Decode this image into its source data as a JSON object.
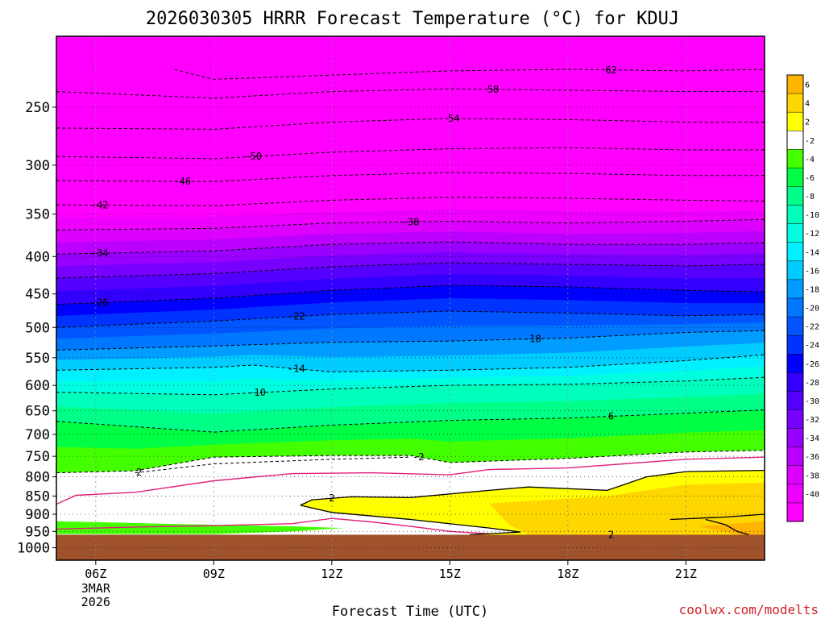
{
  "chart_data": {
    "type": "heatmap",
    "title": "2026030305 HRRR Forecast Temperature (°C) for KDUJ",
    "xlabel": "Forecast Time (UTC)",
    "ylabel": "",
    "credit": "coolwx.com/modelts",
    "y_scale": "log-pressure",
    "y_range": [
      1040,
      200
    ],
    "x_range": [
      5,
      23
    ],
    "y_ticks": [
      250,
      300,
      350,
      400,
      450,
      500,
      550,
      600,
      650,
      700,
      750,
      800,
      850,
      900,
      950,
      1000
    ],
    "x_ticks": [
      {
        "x": 6,
        "label": "06Z",
        "sub": [
          "3MAR",
          "2026"
        ]
      },
      {
        "x": 9,
        "label": "09Z"
      },
      {
        "x": 12,
        "label": "12Z"
      },
      {
        "x": 15,
        "label": "15Z"
      },
      {
        "x": 18,
        "label": "18Z"
      },
      {
        "x": 21,
        "label": "21Z"
      }
    ],
    "surface_pressure_hpa": 960,
    "ground_color": "#a0522d",
    "colorbar": {
      "levels": [
        6,
        4,
        2,
        -2,
        -4,
        -6,
        -8,
        -10,
        -12,
        -14,
        -16,
        -18,
        -20,
        -22,
        -24,
        -26,
        -28,
        -30,
        -32,
        -34,
        -36,
        -38,
        -40
      ],
      "bands": [
        {
          "min": 6,
          "max": 8,
          "color": "#ffb400"
        },
        {
          "min": 4,
          "max": 6,
          "color": "#ffd700"
        },
        {
          "min": 2,
          "max": 4,
          "color": "#ffff00"
        },
        {
          "min": -2,
          "max": 2,
          "color": "#ffffff"
        },
        {
          "min": -4,
          "max": -2,
          "color": "#44ff00"
        },
        {
          "min": -6,
          "max": -4,
          "color": "#00ff44"
        },
        {
          "min": -8,
          "max": -6,
          "color": "#00ff88"
        },
        {
          "min": -10,
          "max": -8,
          "color": "#00ffbb"
        },
        {
          "min": -12,
          "max": -10,
          "color": "#00ffe0"
        },
        {
          "min": -14,
          "max": -12,
          "color": "#00f0ff"
        },
        {
          "min": -16,
          "max": -14,
          "color": "#00ccff"
        },
        {
          "min": -18,
          "max": -16,
          "color": "#009cff"
        },
        {
          "min": -20,
          "max": -18,
          "color": "#0077ff"
        },
        {
          "min": -22,
          "max": -20,
          "color": "#0055ff"
        },
        {
          "min": -24,
          "max": -22,
          "color": "#0033ff"
        },
        {
          "min": -26,
          "max": -24,
          "color": "#0000ff"
        },
        {
          "min": -28,
          "max": -26,
          "color": "#3300ff"
        },
        {
          "min": -30,
          "max": -28,
          "color": "#5500ff"
        },
        {
          "min": -32,
          "max": -30,
          "color": "#7700ff"
        },
        {
          "min": -34,
          "max": -32,
          "color": "#9900ff"
        },
        {
          "min": -36,
          "max": -34,
          "color": "#bb00ff"
        },
        {
          "min": -38,
          "max": -36,
          "color": "#dd00ff"
        },
        {
          "min": -40,
          "max": -38,
          "color": "#ee00ff"
        },
        {
          "min": -70,
          "max": -40,
          "color": "#ff00ff"
        }
      ]
    },
    "isotherms": [
      {
        "level": -62,
        "label": "62",
        "label_x": 19.1,
        "points": [
          [
            8,
            222
          ],
          [
            9,
            229
          ],
          [
            12,
            226
          ],
          [
            15,
            223
          ],
          [
            18,
            222
          ],
          [
            21,
            223
          ],
          [
            23,
            222
          ]
        ]
      },
      {
        "level": -58,
        "label": "58",
        "label_x": 16.1,
        "points": [
          [
            5,
            238
          ],
          [
            9,
            243
          ],
          [
            12,
            238
          ],
          [
            15,
            236
          ],
          [
            18,
            237
          ],
          [
            21,
            238
          ],
          [
            23,
            238
          ]
        ]
      },
      {
        "level": -54,
        "label": "54",
        "label_x": 15.1,
        "points": [
          [
            5,
            267
          ],
          [
            9,
            268
          ],
          [
            12,
            262
          ],
          [
            15,
            259
          ],
          [
            18,
            260
          ],
          [
            21,
            262
          ],
          [
            23,
            262
          ]
        ]
      },
      {
        "level": -50,
        "label": "-50",
        "label_x": 10.0,
        "points": [
          [
            5,
            292
          ],
          [
            9,
            294
          ],
          [
            12,
            288
          ],
          [
            15,
            285
          ],
          [
            18,
            284
          ],
          [
            21,
            286
          ],
          [
            23,
            286
          ]
        ]
      },
      {
        "level": -46,
        "label": "-46",
        "label_x": 8.2,
        "points": [
          [
            5,
            315
          ],
          [
            9,
            316
          ],
          [
            12,
            310
          ],
          [
            15,
            307
          ],
          [
            18,
            308
          ],
          [
            21,
            310
          ],
          [
            23,
            310
          ]
        ]
      },
      {
        "level": -42,
        "label": "-42",
        "label_x": 6.1,
        "points": [
          [
            5,
            340
          ],
          [
            9,
            341
          ],
          [
            12,
            335
          ],
          [
            15,
            332
          ],
          [
            18,
            333
          ],
          [
            21,
            335
          ],
          [
            23,
            336
          ]
        ]
      },
      {
        "level": -38,
        "label": "-38",
        "label_x": 14.0,
        "points": [
          [
            5,
            368
          ],
          [
            9,
            366
          ],
          [
            12,
            360
          ],
          [
            15,
            358
          ],
          [
            18,
            360
          ],
          [
            21,
            358
          ],
          [
            23,
            356
          ]
        ]
      },
      {
        "level": -34,
        "label": "-34",
        "label_x": 6.1,
        "points": [
          [
            5,
            397
          ],
          [
            9,
            393
          ],
          [
            12,
            385
          ],
          [
            15,
            382
          ],
          [
            18,
            385
          ],
          [
            21,
            385
          ],
          [
            23,
            383
          ]
        ]
      },
      {
        "level": -30,
        "label": "",
        "label_x": 0,
        "points": [
          [
            5,
            428
          ],
          [
            9,
            422
          ],
          [
            12,
            413
          ],
          [
            15,
            408
          ],
          [
            18,
            410
          ],
          [
            21,
            412
          ],
          [
            23,
            410
          ]
        ]
      },
      {
        "level": -26,
        "label": "-26",
        "label_x": 6.1,
        "points": [
          [
            5,
            465
          ],
          [
            9,
            456
          ],
          [
            12,
            445
          ],
          [
            15,
            438
          ],
          [
            18,
            440
          ],
          [
            21,
            445
          ],
          [
            23,
            447
          ]
        ]
      },
      {
        "level": -22,
        "label": "-22",
        "label_x": 11.1,
        "points": [
          [
            5,
            500
          ],
          [
            9,
            490
          ],
          [
            12,
            480
          ],
          [
            15,
            475
          ],
          [
            18,
            478
          ],
          [
            21,
            482
          ],
          [
            23,
            480
          ]
        ]
      },
      {
        "level": -18,
        "label": "-18",
        "label_x": 17.1,
        "points": [
          [
            5,
            537
          ],
          [
            9,
            530
          ],
          [
            12,
            524
          ],
          [
            15,
            522
          ],
          [
            18,
            517
          ],
          [
            21,
            508
          ],
          [
            23,
            505
          ]
        ]
      },
      {
        "level": -14,
        "label": "-14",
        "label_x": 11.1,
        "points": [
          [
            5,
            572
          ],
          [
            9,
            567
          ],
          [
            10,
            563
          ],
          [
            12,
            575
          ],
          [
            15,
            572
          ],
          [
            18,
            567
          ],
          [
            21,
            555
          ],
          [
            23,
            545
          ]
        ]
      },
      {
        "level": -10,
        "label": "-10",
        "label_x": 10.1,
        "points": [
          [
            5,
            613
          ],
          [
            9,
            618
          ],
          [
            12,
            607
          ],
          [
            15,
            600
          ],
          [
            18,
            598
          ],
          [
            21,
            592
          ],
          [
            23,
            585
          ]
        ]
      },
      {
        "level": -6,
        "label": "6",
        "label_x": 19.1,
        "points": [
          [
            5,
            672
          ],
          [
            9,
            695
          ],
          [
            12,
            680
          ],
          [
            15,
            670
          ],
          [
            18,
            665
          ],
          [
            21,
            655
          ],
          [
            23,
            648
          ]
        ]
      },
      {
        "level": -2,
        "label": "-2",
        "label_x": 14.2,
        "points": [
          [
            5,
            790
          ],
          [
            7,
            785
          ],
          [
            9,
            752
          ],
          [
            12,
            748
          ],
          [
            14,
            748
          ],
          [
            15,
            765
          ],
          [
            18,
            755
          ],
          [
            21,
            740
          ],
          [
            23,
            736
          ]
        ]
      },
      {
        "level": -2,
        "label": "2",
        "label_x": 7.1,
        "points": [
          [
            7,
            790
          ],
          [
            9,
            768
          ],
          [
            12,
            757
          ],
          [
            14,
            752
          ]
        ]
      }
    ],
    "freezing_line": {
      "level": 0,
      "color": "#e0207a",
      "points": [
        [
          5,
          872
        ],
        [
          5.5,
          848
        ],
        [
          7,
          840
        ],
        [
          9,
          810
        ],
        [
          11,
          792
        ],
        [
          13,
          790
        ],
        [
          15,
          795
        ],
        [
          16,
          782
        ],
        [
          18,
          778
        ],
        [
          21,
          757
        ],
        [
          23,
          752
        ]
      ]
    },
    "freezing_line_lower": {
      "level": 0,
      "color": "#e0207a",
      "points": [
        [
          5,
          943
        ],
        [
          7,
          937
        ],
        [
          9,
          933
        ],
        [
          11,
          927
        ],
        [
          12,
          912
        ],
        [
          13,
          922
        ],
        [
          14,
          935
        ],
        [
          15,
          950
        ],
        [
          16,
          957
        ]
      ]
    },
    "warm_contour": {
      "level": 2,
      "label": "2",
      "label_x": 12.0,
      "points": [
        [
          11.2,
          875
        ],
        [
          11.5,
          860
        ],
        [
          12.5,
          852
        ],
        [
          14,
          854
        ],
        [
          16,
          835
        ],
        [
          17,
          826
        ],
        [
          19,
          835
        ],
        [
          20,
          800
        ],
        [
          21,
          787
        ],
        [
          23,
          784
        ]
      ]
    },
    "warm_contour_lower": {
      "level": 2,
      "label": "2",
      "label_x": 19.1,
      "points": [
        [
          11.2,
          875
        ],
        [
          12,
          895
        ],
        [
          14,
          915
        ],
        [
          16,
          940
        ],
        [
          16.8,
          952
        ],
        [
          15.5,
          960
        ]
      ]
    },
    "warm_contour_inner": {
      "level": 6,
      "points": [
        [
          20.6,
          915
        ],
        [
          22,
          908
        ],
        [
          23,
          900
        ]
      ]
    },
    "warm_contour_inner2": {
      "level": 6,
      "points": [
        [
          21.5,
          915
        ],
        [
          22,
          930
        ],
        [
          22.3,
          950
        ],
        [
          22.6,
          960
        ]
      ]
    }
  }
}
